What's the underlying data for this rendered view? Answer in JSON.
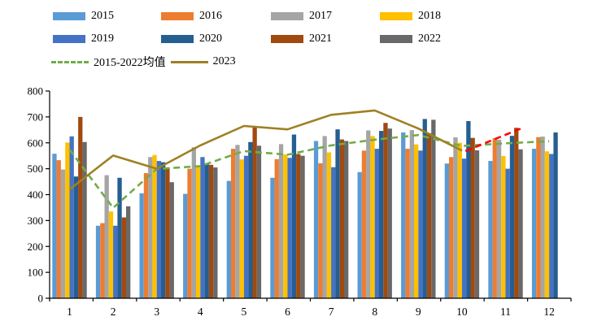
{
  "chart_data": {
    "type": "bar",
    "subtype": "grouped-column-with-lines",
    "title": "",
    "xlabel": "",
    "ylabel": "",
    "categories": [
      "1",
      "2",
      "3",
      "4",
      "5",
      "6",
      "7",
      "8",
      "9",
      "10",
      "11",
      "12"
    ],
    "ylim": [
      0,
      800
    ],
    "ytick_step": 100,
    "grid": false,
    "legend_position": "top",
    "series": [
      {
        "name": "2015",
        "type": "bar",
        "color": "#5B9BD5",
        "values": [
          558,
          280,
          405,
          403,
          453,
          465,
          607,
          487,
          640,
          520,
          530,
          577
        ]
      },
      {
        "name": "2016",
        "type": "bar",
        "color": "#ED7D31",
        "values": [
          533,
          290,
          483,
          500,
          577,
          537,
          521,
          570,
          577,
          545,
          618,
          622
        ]
      },
      {
        "name": "2017",
        "type": "bar",
        "color": "#A5A5A5",
        "values": [
          497,
          475,
          545,
          583,
          592,
          595,
          626,
          648,
          649,
          621,
          612,
          624
        ]
      },
      {
        "name": "2018",
        "type": "bar",
        "color": "#FFC000",
        "values": [
          601,
          335,
          553,
          509,
          536,
          555,
          563,
          626,
          594,
          600,
          549,
          567
        ]
      },
      {
        "name": "2019",
        "type": "bar",
        "color": "#4472C4",
        "values": [
          625,
          280,
          530,
          545,
          550,
          542,
          506,
          577,
          570,
          539,
          500,
          557
        ]
      },
      {
        "name": "2020",
        "type": "bar",
        "color": "#255E91",
        "values": [
          470,
          465,
          525,
          520,
          603,
          632,
          652,
          646,
          692,
          684,
          627,
          640
        ]
      },
      {
        "name": "2021",
        "type": "bar",
        "color": "#A04A10",
        "values": [
          700,
          312,
          505,
          515,
          663,
          557,
          613,
          677,
          637,
          619,
          658,
          null
        ]
      },
      {
        "name": "2022",
        "type": "bar",
        "color": "#696969",
        "values": [
          603,
          355,
          448,
          505,
          589,
          550,
          607,
          655,
          689,
          571,
          575,
          null
        ]
      },
      {
        "name": "2015-2022均值",
        "type": "line",
        "style": "dashed",
        "color": "#70AD47",
        "values": [
          574,
          349,
          499,
          510,
          568,
          554,
          590,
          612,
          630,
          588,
          598,
          606
        ]
      },
      {
        "name": "2023",
        "type": "line",
        "style": "solid",
        "color": "#9E8123",
        "values": [
          420,
          551,
          500,
          590,
          665,
          652,
          708,
          725,
          655,
          570,
          null,
          null
        ]
      },
      {
        "name": "",
        "id": "forecast",
        "type": "line",
        "style": "dashed",
        "color": "#FF0000",
        "in_legend": false,
        "points": [
          {
            "x": 10.08,
            "y": 568
          },
          {
            "x": 11.35,
            "y": 655
          }
        ]
      }
    ]
  },
  "legend": {
    "rows": [
      [
        {
          "label": "2015",
          "swatch": "bar",
          "color": "#5B9BD5"
        },
        {
          "label": "2016",
          "swatch": "bar",
          "color": "#ED7D31"
        },
        {
          "label": "2017",
          "swatch": "bar",
          "color": "#A5A5A5"
        },
        {
          "label": "2018",
          "swatch": "bar",
          "color": "#FFC000"
        }
      ],
      [
        {
          "label": "2019",
          "swatch": "bar",
          "color": "#4472C4"
        },
        {
          "label": "2020",
          "swatch": "bar",
          "color": "#255E91"
        },
        {
          "label": "2021",
          "swatch": "bar",
          "color": "#A04A10"
        },
        {
          "label": "2022",
          "swatch": "bar",
          "color": "#696969"
        }
      ],
      [
        {
          "label": "2015-2022均值",
          "swatch": "dashed-line",
          "color": "#70AD47"
        },
        {
          "label": "2023",
          "swatch": "solid-line",
          "color": "#9E8123"
        }
      ]
    ]
  },
  "axes": {
    "y_tick_labels": [
      "0",
      "100",
      "200",
      "300",
      "400",
      "500",
      "600",
      "700",
      "800"
    ],
    "x_tick_labels": [
      "1",
      "2",
      "3",
      "4",
      "5",
      "6",
      "7",
      "8",
      "9",
      "10",
      "11",
      "12"
    ]
  }
}
